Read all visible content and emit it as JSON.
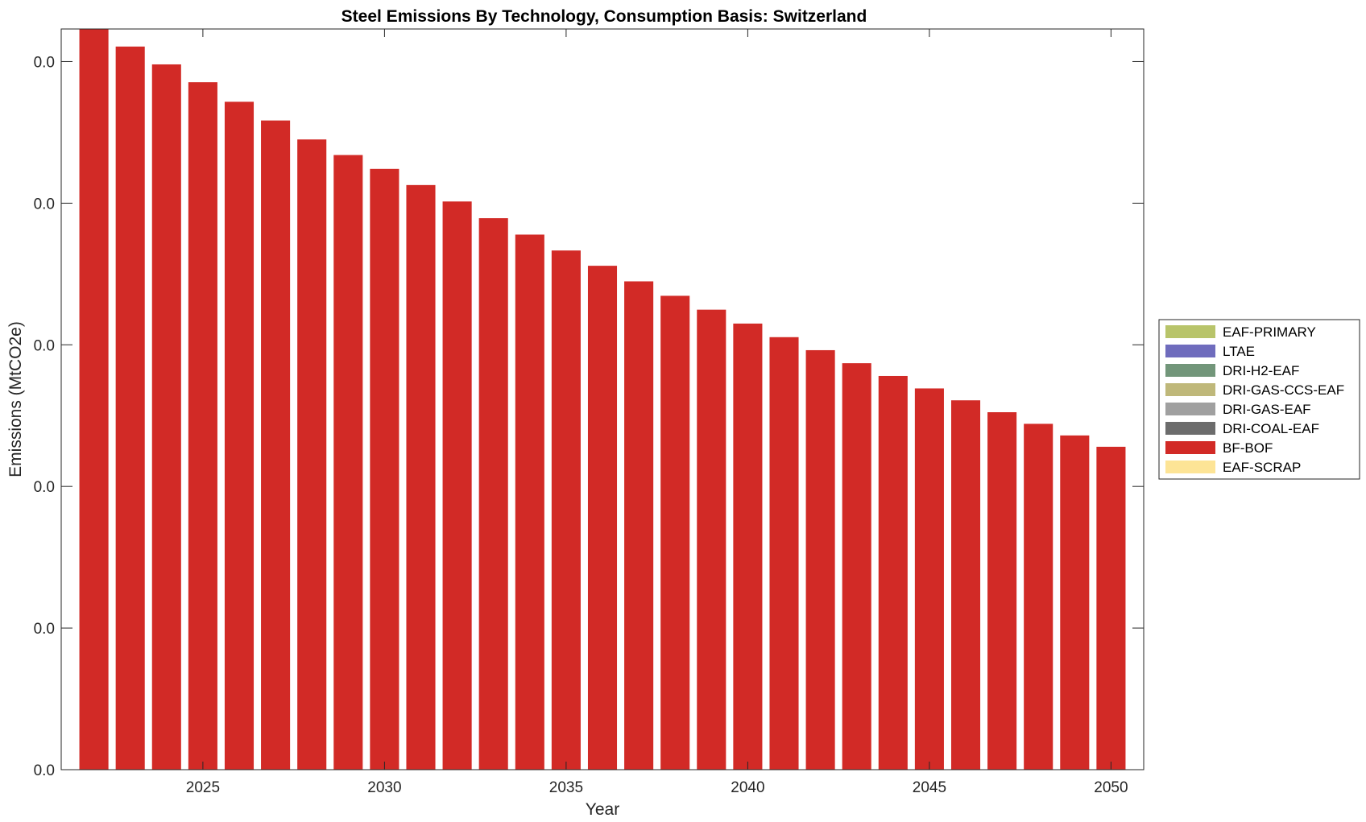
{
  "chart_data": {
    "type": "bar",
    "stacked": true,
    "title": "Steel Emissions By Technology, Consumption Basis: Switzerland",
    "xlabel": "Year",
    "ylabel": "Emissions (MtCO2e)",
    "x": [
      2022,
      2023,
      2024,
      2025,
      2026,
      2027,
      2028,
      2029,
      2030,
      2031,
      2032,
      2033,
      2034,
      2035,
      2036,
      2037,
      2038,
      2039,
      2040,
      2041,
      2042,
      2043,
      2044,
      2045,
      2046,
      2047,
      2048,
      2049,
      2050
    ],
    "xlim": [
      2021.1,
      2050.9
    ],
    "xticks": [
      2025,
      2030,
      2035,
      2040,
      2045,
      2050
    ],
    "ylim": [
      0,
      0.02615
    ],
    "yticks": [
      0,
      0.005,
      0.01,
      0.015,
      0.02,
      0.025
    ],
    "yticklabels": [
      "0.0",
      "0.0",
      "0.0",
      "0.0",
      "0.0",
      "0.0"
    ],
    "grid": false,
    "legend_position": "outside-right",
    "series": [
      {
        "name": "EAF-PRIMARY",
        "color": "#b8c46a",
        "values": [
          0,
          0,
          0,
          0,
          0,
          0,
          0,
          0,
          0,
          0,
          0,
          0,
          0,
          0,
          0,
          0,
          0,
          0,
          0,
          0,
          0,
          0,
          0,
          0,
          0,
          0,
          0,
          0,
          0
        ]
      },
      {
        "name": "LTAE",
        "color": "#6f6cbd",
        "values": [
          0,
          0,
          0,
          0,
          0,
          0,
          0,
          0,
          0,
          0,
          0,
          0,
          0,
          0,
          0,
          0,
          0,
          0,
          0,
          0,
          0,
          0,
          0,
          0,
          0,
          0,
          0,
          0,
          0
        ]
      },
      {
        "name": "DRI-H2-EAF",
        "color": "#72967a",
        "values": [
          0,
          0,
          0,
          0,
          0,
          0,
          0,
          0,
          0,
          0,
          0,
          0,
          0,
          0,
          0,
          0,
          0,
          0,
          0,
          0,
          0,
          0,
          0,
          0,
          0,
          0,
          0,
          0,
          0
        ]
      },
      {
        "name": "DRI-GAS-CCS-EAF",
        "color": "#bfb87a",
        "values": [
          0,
          0,
          0,
          0,
          0,
          0,
          0,
          0,
          0,
          0,
          0,
          0,
          0,
          0,
          0,
          0,
          0,
          0,
          0,
          0,
          0,
          0,
          0,
          0,
          0,
          0,
          0,
          0,
          0
        ]
      },
      {
        "name": "DRI-GAS-EAF",
        "color": "#a0a0a0",
        "values": [
          0,
          0,
          0,
          0,
          0,
          0,
          0,
          0,
          0,
          0,
          0,
          0,
          0,
          0,
          0,
          0,
          0,
          0,
          0,
          0,
          0,
          0,
          0,
          0,
          0,
          0,
          0,
          0,
          0
        ]
      },
      {
        "name": "DRI-COAL-EAF",
        "color": "#6c6c6c",
        "values": [
          0,
          0,
          0,
          0,
          0,
          0,
          0,
          0,
          0,
          0,
          0,
          0,
          0,
          0,
          0,
          0,
          0,
          0,
          0,
          0,
          0,
          0,
          0,
          0,
          0,
          0,
          0,
          0,
          0
        ]
      },
      {
        "name": "BF-BOF",
        "color": "#d22a26",
        "values": [
          0.02615,
          0.02553,
          0.0249,
          0.02427,
          0.02358,
          0.02292,
          0.02225,
          0.0217,
          0.02121,
          0.02064,
          0.02006,
          0.01947,
          0.01889,
          0.01833,
          0.01779,
          0.01724,
          0.01673,
          0.01624,
          0.01575,
          0.01527,
          0.01481,
          0.01435,
          0.0139,
          0.01346,
          0.01304,
          0.01262,
          0.01221,
          0.0118,
          0.0114
        ]
      },
      {
        "name": "EAF-SCRAP",
        "color": "#fde496",
        "values": [
          0,
          0,
          0,
          0,
          0,
          0,
          0,
          0,
          0,
          0,
          0,
          0,
          0,
          0,
          0,
          0,
          0,
          0,
          0,
          0,
          0,
          0,
          0,
          0,
          0,
          0,
          0,
          0,
          0
        ]
      }
    ]
  }
}
